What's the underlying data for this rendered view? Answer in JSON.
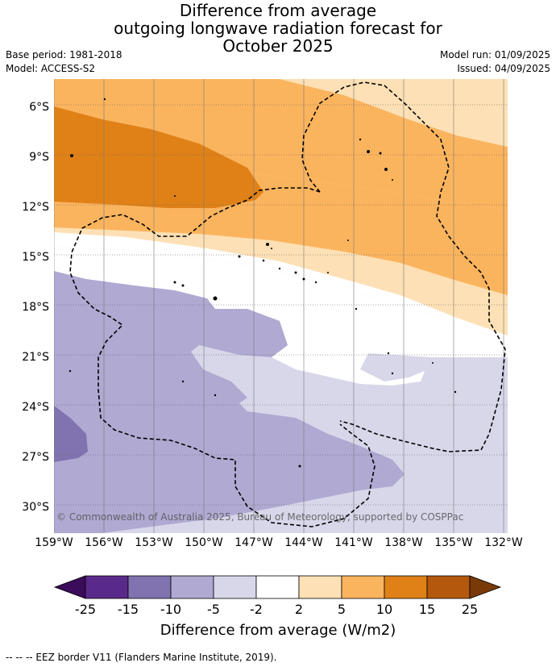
{
  "title": {
    "line1": "Difference from average",
    "line2": "outgoing longwave radiation forecast for",
    "line3": "October 2025"
  },
  "meta": {
    "base_period": "Base period: 1981-2018",
    "model": "Model: ACCESS-S2",
    "model_run": "Model run: 01/09/2025",
    "issued": "Issued: 04/09/2025"
  },
  "map": {
    "lat_labels": [
      "6°S",
      "9°S",
      "12°S",
      "15°S",
      "18°S",
      "21°S",
      "24°S",
      "27°S",
      "30°S"
    ],
    "lon_labels": [
      "159°W",
      "156°W",
      "153°W",
      "150°W",
      "147°W",
      "144°W",
      "141°W",
      "138°W",
      "135°W",
      "132°W"
    ],
    "copyright": "© Commonwealth of Australia 2025, Bureau of Meteorology, supported by COSPPac"
  },
  "colorbar": {
    "title": "Difference from average (W/m2)",
    "ticks": [
      "-25",
      "-15",
      "-10",
      "-5",
      "-2",
      "2",
      "5",
      "10",
      "15",
      "25"
    ],
    "colors": [
      "#3a0c5a",
      "#5a2a8a",
      "#8073b0",
      "#b0a9d2",
      "#d8d7ea",
      "#ffffff",
      "#fde0b5",
      "#fbb45e",
      "#e08118",
      "#b3580c",
      "#7a3a08"
    ]
  },
  "footer": "--  --  -- EEZ border V11 (Flanders Marine Institute, 2019)."
}
